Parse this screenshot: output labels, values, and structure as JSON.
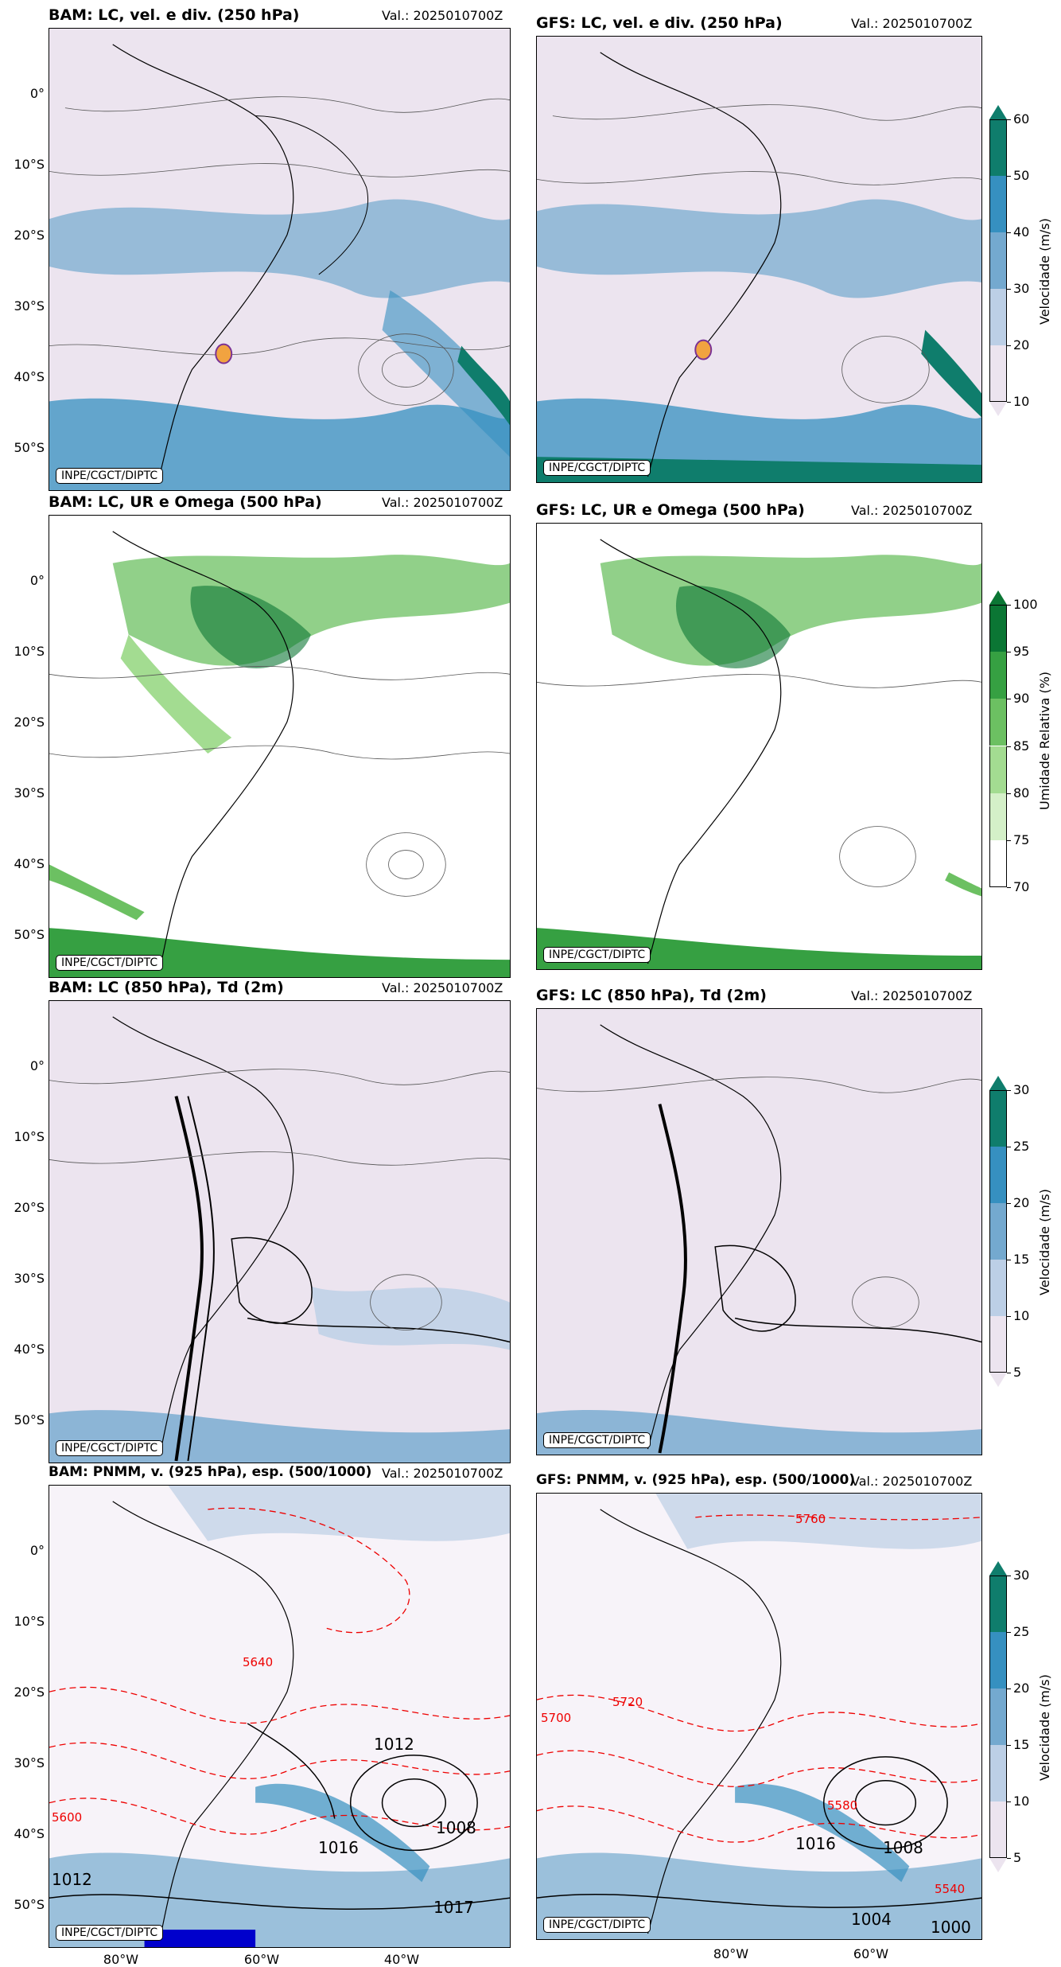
{
  "rows": [
    {
      "left": {
        "title": "BAM: LC, vel. e div. (250 hPa)",
        "valid": "Val.: 2025010700Z"
      },
      "right": {
        "title": "GFS: LC, vel. e div. (250 hPa)",
        "valid": "Val.: 2025010700Z"
      },
      "colorbar": {
        "label": "Velocidade (m/s)",
        "ticks": [
          "10",
          "20",
          "30",
          "40",
          "50",
          "60"
        ],
        "colors": [
          "#ece4ef",
          "#bccfe6",
          "#74a9cf",
          "#3690c0",
          "#0f7d6c"
        ]
      }
    },
    {
      "left": {
        "title": "BAM: LC, UR e Omega (500 hPa)",
        "valid": "Val.: 2025010700Z"
      },
      "right": {
        "title": "GFS: LC, UR e Omega (500 hPa)",
        "valid": "Val.: 2025010700Z"
      },
      "colorbar": {
        "label": "Umidade Relativa (%)",
        "ticks": [
          "70",
          "75",
          "80",
          "85",
          "90",
          "95",
          "100"
        ],
        "colors": [
          "#ffffff",
          "#d4f0c8",
          "#a3dc91",
          "#6cc062",
          "#36a042",
          "#0b7634"
        ]
      }
    },
    {
      "left": {
        "title": "BAM: LC (850 hPa), Td (2m)",
        "valid": "Val.: 2025010700Z"
      },
      "right": {
        "title": "GFS: LC (850 hPa), Td (2m)",
        "valid": "Val.: 2025010700Z"
      },
      "colorbar": {
        "label": "Velocidade (m/s)",
        "ticks": [
          "5",
          "10",
          "15",
          "20",
          "25",
          "30"
        ],
        "colors": [
          "#ece4ef",
          "#bccfe6",
          "#74a9cf",
          "#3690c0",
          "#0f7d6c"
        ]
      }
    },
    {
      "left": {
        "title": "BAM: PNMM, v. (925 hPa), esp. (500/1000)",
        "valid": "Val.: 2025010700Z"
      },
      "right": {
        "title": "GFS: PNMM, v. (925 hPa), esp. (500/1000)",
        "valid": "Val.: 2025010700Z"
      },
      "colorbar": {
        "label": "Velocidade (m/s)",
        "ticks": [
          "5",
          "10",
          "15",
          "20",
          "25",
          "30"
        ],
        "colors": [
          "#ece4ef",
          "#bccfe6",
          "#74a9cf",
          "#3690c0",
          "#0f7d6c"
        ]
      }
    }
  ],
  "credit": "INPE/CGCT/DIPTC",
  "lat_labels": [
    "0°",
    "10°S",
    "20°S",
    "30°S",
    "40°S",
    "50°S"
  ],
  "lon_labels": [
    "80°W",
    "60°W",
    "40°W"
  ],
  "contour_labels": {
    "isobars": [
      "1012",
      "1008",
      "1016",
      "1012",
      "1017",
      "1008",
      "1016",
      "1004",
      "1000"
    ],
    "thickness": [
      "5760",
      "5700",
      "5720",
      "5640",
      "5600",
      "5580",
      "5540"
    ]
  }
}
